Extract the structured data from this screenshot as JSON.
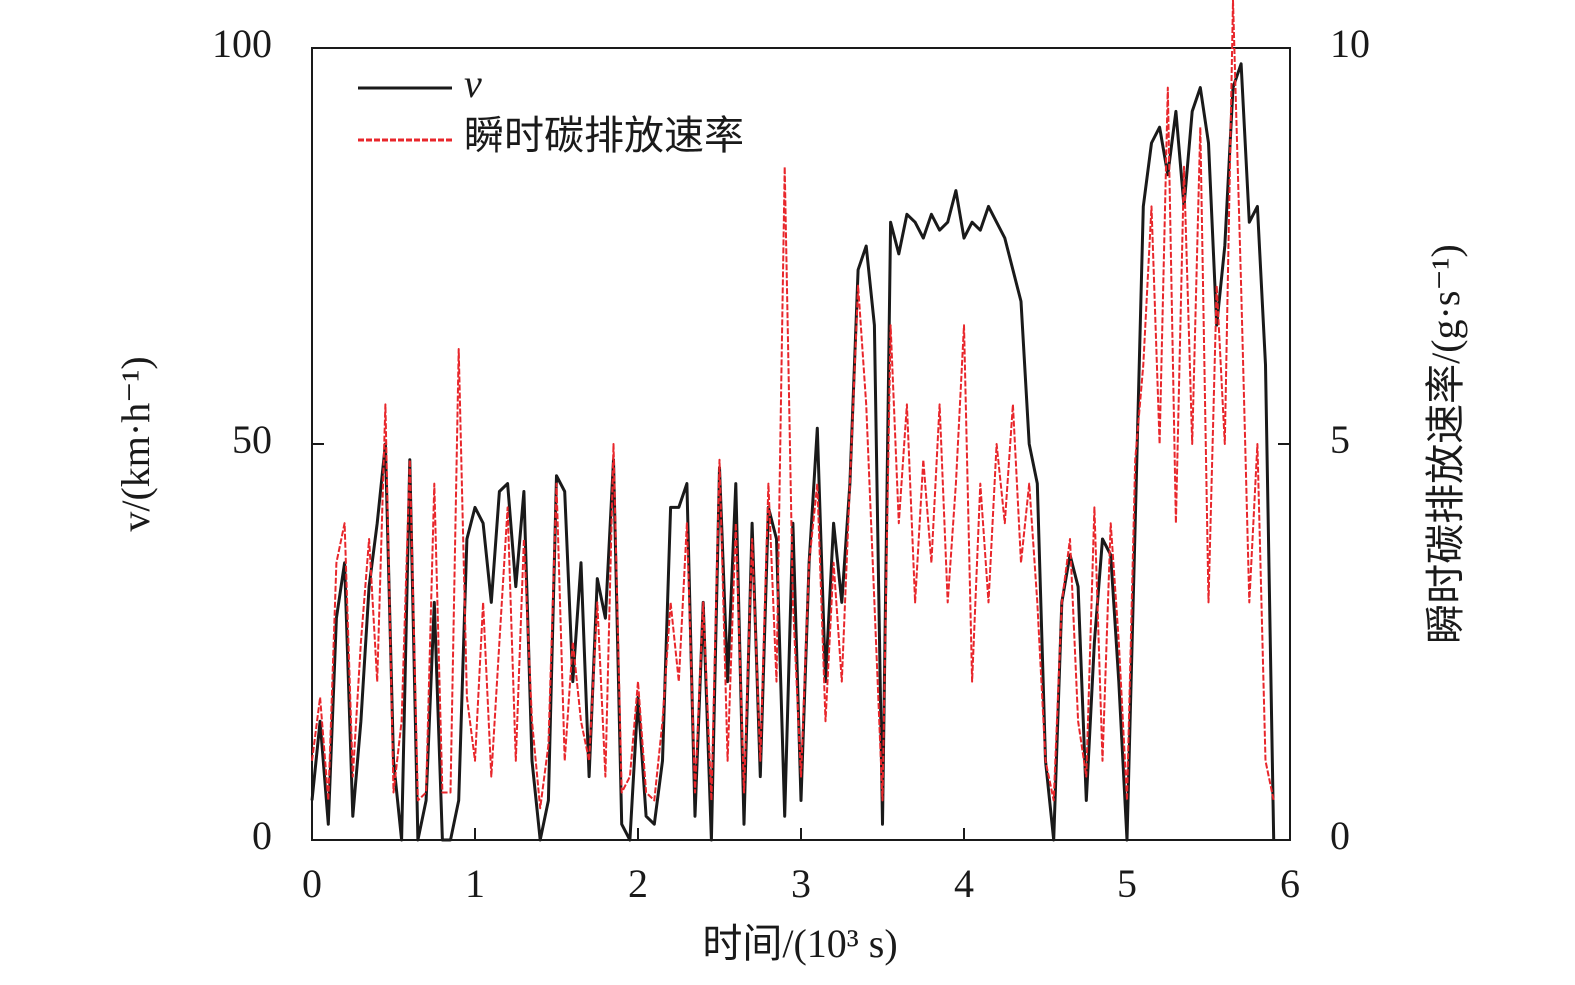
{
  "chart_data": {
    "type": "line",
    "xlabel": "时间/(10³ s)",
    "ylabel": "v/(km·h⁻¹)",
    "y2label": "瞬时碳排放速率/(g·s⁻¹)",
    "x": [
      0,
      0.05,
      0.1,
      0.15,
      0.2,
      0.25,
      0.3,
      0.35,
      0.4,
      0.45,
      0.5,
      0.55,
      0.6,
      0.65,
      0.7,
      0.75,
      0.8,
      0.85,
      0.9,
      0.95,
      1.0,
      1.05,
      1.1,
      1.15,
      1.2,
      1.25,
      1.3,
      1.35,
      1.4,
      1.45,
      1.5,
      1.55,
      1.6,
      1.65,
      1.7,
      1.75,
      1.8,
      1.85,
      1.9,
      1.95,
      2.0,
      2.05,
      2.1,
      2.15,
      2.2,
      2.25,
      2.3,
      2.35,
      2.4,
      2.45,
      2.5,
      2.55,
      2.6,
      2.65,
      2.7,
      2.75,
      2.8,
      2.85,
      2.9,
      2.95,
      3.0,
      3.05,
      3.1,
      3.15,
      3.2,
      3.25,
      3.3,
      3.35,
      3.4,
      3.45,
      3.5,
      3.55,
      3.6,
      3.65,
      3.7,
      3.75,
      3.8,
      3.85,
      3.9,
      3.95,
      4.0,
      4.05,
      4.1,
      4.15,
      4.2,
      4.25,
      4.3,
      4.35,
      4.4,
      4.45,
      4.5,
      4.55,
      4.6,
      4.65,
      4.7,
      4.75,
      4.8,
      4.85,
      4.9,
      4.95,
      5.0,
      5.05,
      5.1,
      5.15,
      5.2,
      5.25,
      5.3,
      5.35,
      5.4,
      5.45,
      5.5,
      5.55,
      5.6,
      5.65,
      5.7,
      5.75,
      5.8,
      5.85,
      5.9
    ],
    "series": [
      {
        "name": "v",
        "color": "#1a1a1a",
        "axis": "y",
        "values": [
          5,
          15,
          2,
          28,
          35,
          3,
          15,
          32,
          40,
          50,
          10,
          0,
          48,
          0,
          5,
          30,
          0,
          0,
          5,
          38,
          42,
          40,
          30,
          44,
          45,
          32,
          44,
          10,
          0,
          5,
          46,
          44,
          20,
          35,
          8,
          33,
          28,
          48,
          2,
          0,
          18,
          3,
          2,
          10,
          42,
          42,
          45,
          3,
          30,
          0,
          47,
          20,
          45,
          2,
          40,
          8,
          42,
          38,
          3,
          40,
          5,
          35,
          52,
          20,
          40,
          30,
          45,
          72,
          75,
          65,
          2,
          78,
          74,
          79,
          78,
          76,
          79,
          77,
          78,
          82,
          76,
          78,
          77,
          80,
          78,
          76,
          72,
          68,
          50,
          45,
          10,
          0,
          30,
          36,
          32,
          5,
          25,
          38,
          36,
          20,
          0,
          40,
          80,
          88,
          90,
          84,
          92,
          80,
          92,
          95,
          88,
          65,
          75,
          95,
          98,
          78,
          80,
          60,
          0
        ]
      },
      {
        "name": "瞬时碳排放速率",
        "color": "#e8262b",
        "axis": "y2",
        "values": [
          1.0,
          1.8,
          0.5,
          3.5,
          4.0,
          0.8,
          2.5,
          3.8,
          2.0,
          5.5,
          0.6,
          1.5,
          4.8,
          0.5,
          0.6,
          4.5,
          0.6,
          0.6,
          6.2,
          1.8,
          1.0,
          3.0,
          0.8,
          2.5,
          4.2,
          1.0,
          3.8,
          1.5,
          0.4,
          1.2,
          4.5,
          1.0,
          2.5,
          1.5,
          1.0,
          3.0,
          0.8,
          5.0,
          0.6,
          0.8,
          2.0,
          0.6,
          0.5,
          1.5,
          3.0,
          2.0,
          4.0,
          0.6,
          3.0,
          0.5,
          4.8,
          1.0,
          4.0,
          0.6,
          3.8,
          1.0,
          4.5,
          2.0,
          8.5,
          3.0,
          0.8,
          3.5,
          4.5,
          1.5,
          3.5,
          2.0,
          4.5,
          7.0,
          5.5,
          3.0,
          0.5,
          6.5,
          4.0,
          5.5,
          3.0,
          4.8,
          3.5,
          5.5,
          3.0,
          4.5,
          6.5,
          2.0,
          4.5,
          3.0,
          5.0,
          4.0,
          5.5,
          3.5,
          4.5,
          3.0,
          1.0,
          0.5,
          3.0,
          3.8,
          1.5,
          0.8,
          4.2,
          1.0,
          4.0,
          2.5,
          0.5,
          4.8,
          6.0,
          8.0,
          5.0,
          9.5,
          4.0,
          8.5,
          5.0,
          9.0,
          3.0,
          7.0,
          5.0,
          10.6,
          7.0,
          3.0,
          5.0,
          1.0,
          0.5
        ]
      }
    ],
    "xlim": [
      0,
      6
    ],
    "xticks": [
      0,
      1,
      2,
      3,
      4,
      5,
      6
    ],
    "ylim": [
      0,
      100
    ],
    "yticks": [
      0,
      50,
      100
    ],
    "y2lim": [
      0,
      10
    ],
    "y2ticks": [
      0,
      5,
      10
    ],
    "legend": "upper left"
  }
}
